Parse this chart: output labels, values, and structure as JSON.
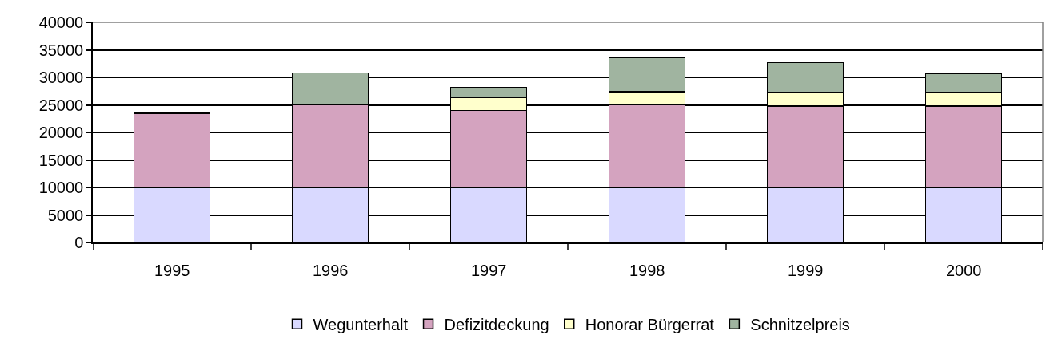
{
  "chart_data": {
    "type": "bar",
    "stacked": true,
    "categories": [
      "1995",
      "1996",
      "1997",
      "1998",
      "1999",
      "2000"
    ],
    "series": [
      {
        "name": "Wegunterhalt",
        "color": "#d9d9ff",
        "values": [
          10000,
          10000,
          10000,
          10000,
          10000,
          10000
        ]
      },
      {
        "name": "Defizitdeckung",
        "color": "#d4a3bf",
        "values": [
          13500,
          15000,
          14000,
          15000,
          14800,
          14800
        ]
      },
      {
        "name": "Honorar Bürgerrat",
        "color": "#ffffcc",
        "values": [
          null,
          null,
          2300,
          2400,
          2500,
          2500
        ]
      },
      {
        "name": "Schnitzelpreis",
        "color": "#a0b4a0",
        "values": [
          null,
          5800,
          1900,
          6200,
          5400,
          3400
        ]
      }
    ],
    "ylim": [
      0,
      40000
    ],
    "yticks": [
      0,
      5000,
      10000,
      15000,
      20000,
      25000,
      30000,
      35000,
      40000
    ],
    "grid": "y",
    "legend": "bottom"
  }
}
